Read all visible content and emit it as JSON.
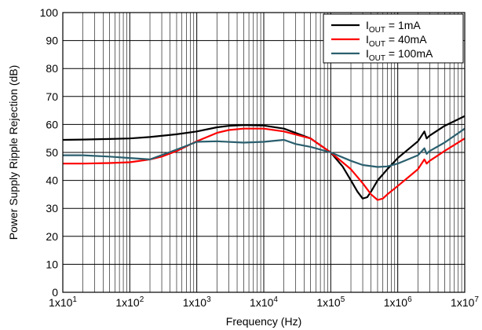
{
  "chart_data": {
    "type": "line",
    "title": "",
    "xlabel": "Frequency (Hz)",
    "ylabel": "Power Supply Ripple Rejection (dB)",
    "x_scale": "log",
    "xlim": [
      10,
      10000000
    ],
    "ylim": [
      0,
      100
    ],
    "grid": true,
    "legend_position": "top-right",
    "x_tick_labels": [
      {
        "value": 10,
        "base": "1x10",
        "exp": "1"
      },
      {
        "value": 100,
        "base": "1x10",
        "exp": "2"
      },
      {
        "value": 1000,
        "base": "1x10",
        "exp": "3"
      },
      {
        "value": 10000,
        "base": "1x10",
        "exp": "4"
      },
      {
        "value": 100000,
        "base": "1x10",
        "exp": "5"
      },
      {
        "value": 1000000,
        "base": "1x10",
        "exp": "6"
      },
      {
        "value": 10000000,
        "base": "1x10",
        "exp": "7"
      }
    ],
    "y_ticks": [
      0,
      10,
      20,
      30,
      40,
      50,
      60,
      70,
      80,
      90,
      100
    ],
    "series": [
      {
        "name": "IOUT = 1mA",
        "label": {
          "main": "I",
          "sub": "OUT",
          "rest": " = 1mA"
        },
        "color": "#000000",
        "x": [
          10,
          20,
          50,
          100,
          200,
          500,
          1000,
          2000,
          3000,
          5000,
          10000,
          20000,
          50000,
          100000,
          150000,
          200000,
          250000,
          300000,
          350000,
          400000,
          500000,
          700000,
          1000000,
          2000000,
          2500000,
          2700000,
          3000000,
          5000000,
          10000000
        ],
        "y": [
          54.5,
          54.6,
          54.8,
          55.0,
          55.5,
          56.5,
          57.5,
          59.0,
          59.5,
          59.8,
          59.6,
          58.5,
          55.0,
          50.0,
          45.0,
          40.0,
          36.0,
          33.5,
          34.0,
          36.0,
          40.0,
          44.0,
          48.0,
          54.0,
          57.5,
          55.0,
          56.0,
          59.5,
          63.0
        ]
      },
      {
        "name": "IOUT = 40mA",
        "label": {
          "main": "I",
          "sub": "OUT",
          "rest": " = 40mA"
        },
        "color": "#ff0000",
        "x": [
          10,
          20,
          50,
          100,
          200,
          300,
          500,
          1000,
          2000,
          3000,
          5000,
          10000,
          20000,
          50000,
          100000,
          200000,
          300000,
          400000,
          500000,
          600000,
          700000,
          1000000,
          2000000,
          2500000,
          2700000,
          3000000,
          5000000,
          10000000
        ],
        "y": [
          46.0,
          46.0,
          46.2,
          46.5,
          47.5,
          48.5,
          50.5,
          54.0,
          57.0,
          58.0,
          58.5,
          58.5,
          57.5,
          55.0,
          50.0,
          44.0,
          39.0,
          35.0,
          33.0,
          33.5,
          35.0,
          38.0,
          44.0,
          47.5,
          46.0,
          47.0,
          50.5,
          55.0
        ]
      },
      {
        "name": "IOUT = 100mA",
        "label": {
          "main": "I",
          "sub": "OUT",
          "rest": " = 100mA"
        },
        "color": "#2a5f6e",
        "x": [
          10,
          20,
          50,
          100,
          200,
          500,
          1000,
          2000,
          5000,
          10000,
          20000,
          30000,
          50000,
          100000,
          200000,
          300000,
          500000,
          700000,
          1000000,
          2000000,
          2500000,
          2700000,
          3000000,
          5000000,
          10000000
        ],
        "y": [
          49.0,
          49.0,
          48.5,
          48.0,
          47.5,
          51.0,
          53.8,
          54.0,
          53.5,
          53.8,
          54.5,
          53.0,
          52.0,
          50.0,
          47.0,
          45.5,
          44.8,
          45.0,
          46.0,
          49.0,
          51.5,
          49.5,
          50.5,
          53.5,
          58.5
        ]
      }
    ]
  }
}
